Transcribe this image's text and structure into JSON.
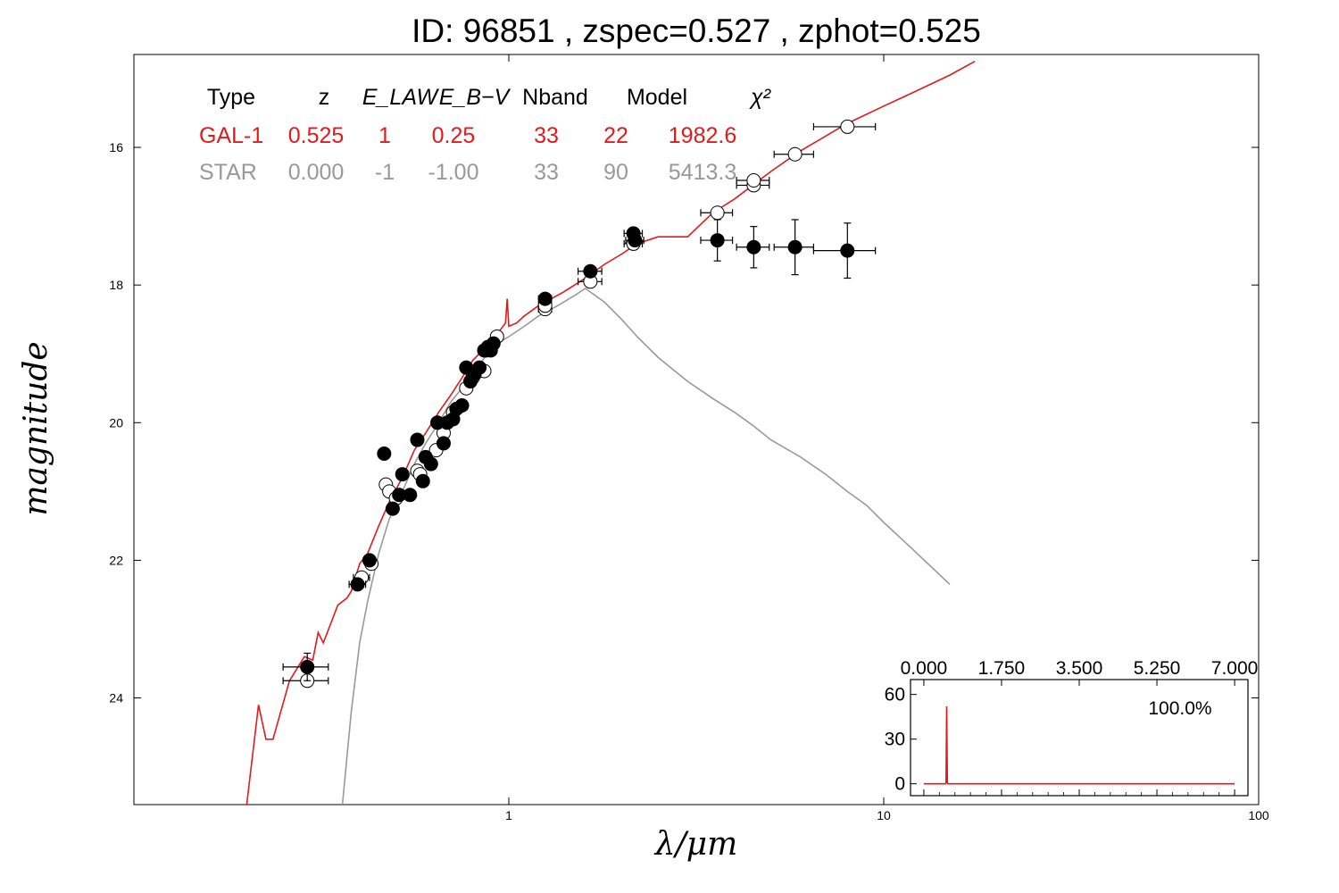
{
  "title": "ID:  96851 , zspec=0.527 , zphot=0.525",
  "colors": {
    "galaxy": "#e31a1c",
    "star": "#999999",
    "points": "#000000"
  },
  "chart_data": [
    {
      "type": "scatter",
      "xlabel": "λ/μm",
      "ylabel": "magnitude",
      "xscale": "log",
      "xlim": [
        0.1,
        100
      ],
      "ylim": [
        25.55,
        14.65
      ],
      "x_tick_labels": [
        {
          "value": 1,
          "label": "1"
        },
        {
          "value": 10,
          "label": "10"
        },
        {
          "value": 100,
          "label": "100"
        }
      ],
      "y_tick_labels": [
        {
          "value": 16,
          "label": "16"
        },
        {
          "value": 18,
          "label": "18"
        },
        {
          "value": 20,
          "label": "20"
        },
        {
          "value": 22,
          "label": "22"
        },
        {
          "value": 24,
          "label": "24"
        }
      ],
      "fit_table": {
        "headers": [
          "Type",
          "z",
          "E_LAW",
          "E_B−V",
          "Nband",
          "Model",
          "χ²"
        ],
        "rows": [
          {
            "color": "#e31a1c",
            "cells": [
              "GAL-1",
              "0.525",
              "1",
              "0.25",
              "33",
              "22",
              "1982.6"
            ]
          },
          {
            "color": "#999999",
            "cells": [
              "STAR",
              "0.000",
              "-1",
              "-1.00",
              "33",
              "90",
              "5413.3"
            ]
          }
        ]
      },
      "series": [
        {
          "name": "GAL-1",
          "kind": "line",
          "color": "#e31a1c",
          "points": [
            [
              0.2,
              25.55
            ],
            [
              0.215,
              24.1
            ],
            [
              0.225,
              24.6
            ],
            [
              0.235,
              24.6
            ],
            [
              0.26,
              23.75
            ],
            [
              0.285,
              23.4
            ],
            [
              0.3,
              23.45
            ],
            [
              0.31,
              23.05
            ],
            [
              0.32,
              23.2
            ],
            [
              0.35,
              22.65
            ],
            [
              0.37,
              22.55
            ],
            [
              0.38,
              22.45
            ],
            [
              0.4,
              22.05
            ],
            [
              0.42,
              21.9
            ],
            [
              0.45,
              21.5
            ],
            [
              0.48,
              21.15
            ],
            [
              0.52,
              20.8
            ],
            [
              0.56,
              20.4
            ],
            [
              0.6,
              20.15
            ],
            [
              0.65,
              19.85
            ],
            [
              0.7,
              19.6
            ],
            [
              0.75,
              19.35
            ],
            [
              0.8,
              19.1
            ],
            [
              0.85,
              18.95
            ],
            [
              0.9,
              18.85
            ],
            [
              0.95,
              18.65
            ],
            [
              0.98,
              18.55
            ],
            [
              0.99,
              18.2
            ],
            [
              1.0,
              18.6
            ],
            [
              1.05,
              18.55
            ],
            [
              1.1,
              18.45
            ],
            [
              1.2,
              18.3
            ],
            [
              1.4,
              18.1
            ],
            [
              1.6,
              17.9
            ],
            [
              1.8,
              17.7
            ],
            [
              2.0,
              17.55
            ],
            [
              2.2,
              17.4
            ],
            [
              2.5,
              17.3
            ],
            [
              3.0,
              17.3
            ],
            [
              3.5,
              16.95
            ],
            [
              4.0,
              16.75
            ],
            [
              5.0,
              16.35
            ],
            [
              6.0,
              16.05
            ],
            [
              8.0,
              15.65
            ],
            [
              10.0,
              15.4
            ],
            [
              12.0,
              15.2
            ],
            [
              15.0,
              14.95
            ],
            [
              17.5,
              14.75
            ]
          ]
        },
        {
          "name": "STAR",
          "kind": "line",
          "color": "#999999",
          "points": [
            [
              0.36,
              25.55
            ],
            [
              0.38,
              24.2
            ],
            [
              0.4,
              23.2
            ],
            [
              0.42,
              22.6
            ],
            [
              0.45,
              21.9
            ],
            [
              0.48,
              21.4
            ],
            [
              0.52,
              21.0
            ],
            [
              0.56,
              20.6
            ],
            [
              0.6,
              20.3
            ],
            [
              0.65,
              20.0
            ],
            [
              0.7,
              19.7
            ],
            [
              0.75,
              19.5
            ],
            [
              0.8,
              19.3
            ],
            [
              0.85,
              19.1
            ],
            [
              0.9,
              18.9
            ],
            [
              1.0,
              18.75
            ],
            [
              1.1,
              18.6
            ],
            [
              1.2,
              18.45
            ],
            [
              1.35,
              18.3
            ],
            [
              1.5,
              18.15
            ],
            [
              1.6,
              18.05
            ],
            [
              1.8,
              18.25
            ],
            [
              2.0,
              18.5
            ],
            [
              2.2,
              18.75
            ],
            [
              2.5,
              19.05
            ],
            [
              3.0,
              19.4
            ],
            [
              3.5,
              19.65
            ],
            [
              4.0,
              19.85
            ],
            [
              4.5,
              20.05
            ],
            [
              5.0,
              20.25
            ],
            [
              6.0,
              20.5
            ],
            [
              7.0,
              20.75
            ],
            [
              8.0,
              21.0
            ],
            [
              9.0,
              21.2
            ],
            [
              10.0,
              21.45
            ],
            [
              12.0,
              21.85
            ],
            [
              15.0,
              22.35
            ]
          ]
        },
        {
          "name": "observed",
          "kind": "points",
          "points": [
            {
              "x": 0.29,
              "y": 23.55,
              "xerr": 0.04,
              "yerr": 0.2
            },
            {
              "x": 0.395,
              "y": 22.35,
              "xerr": 0.02,
              "yerr": 0.05
            },
            {
              "x": 0.425,
              "y": 22.0,
              "xerr": 0.01,
              "yerr": 0.05
            },
            {
              "x": 0.465,
              "y": 20.45,
              "xerr": 0.01,
              "yerr": 0.05
            },
            {
              "x": 0.49,
              "y": 21.25,
              "xerr": 0.01,
              "yerr": 0.05
            },
            {
              "x": 0.51,
              "y": 21.05,
              "xerr": 0.01,
              "yerr": 0.05
            },
            {
              "x": 0.52,
              "y": 20.75,
              "xerr": 0.01,
              "yerr": 0.05
            },
            {
              "x": 0.545,
              "y": 21.05,
              "xerr": 0.01,
              "yerr": 0.05
            },
            {
              "x": 0.57,
              "y": 20.25,
              "xerr": 0.01,
              "yerr": 0.05
            },
            {
              "x": 0.59,
              "y": 20.85,
              "xerr": 0.01,
              "yerr": 0.05
            },
            {
              "x": 0.6,
              "y": 20.5,
              "xerr": 0.01,
              "yerr": 0.05
            },
            {
              "x": 0.62,
              "y": 20.6,
              "xerr": 0.01,
              "yerr": 0.05
            },
            {
              "x": 0.645,
              "y": 20.0,
              "xerr": 0.01,
              "yerr": 0.05
            },
            {
              "x": 0.67,
              "y": 20.3,
              "xerr": 0.01,
              "yerr": 0.05
            },
            {
              "x": 0.685,
              "y": 20.0,
              "xerr": 0.01,
              "yerr": 0.05
            },
            {
              "x": 0.71,
              "y": 19.95,
              "xerr": 0.01,
              "yerr": 0.05
            },
            {
              "x": 0.725,
              "y": 19.8,
              "xerr": 0.01,
              "yerr": 0.05
            },
            {
              "x": 0.75,
              "y": 19.75,
              "xerr": 0.01,
              "yerr": 0.05
            },
            {
              "x": 0.77,
              "y": 19.2,
              "xerr": 0.01,
              "yerr": 0.05
            },
            {
              "x": 0.79,
              "y": 19.4,
              "xerr": 0.01,
              "yerr": 0.05
            },
            {
              "x": 0.81,
              "y": 19.3,
              "xerr": 0.01,
              "yerr": 0.05
            },
            {
              "x": 0.835,
              "y": 19.2,
              "xerr": 0.01,
              "yerr": 0.05
            },
            {
              "x": 0.86,
              "y": 18.95,
              "xerr": 0.01,
              "yerr": 0.05
            },
            {
              "x": 0.88,
              "y": 18.9,
              "xerr": 0.01,
              "yerr": 0.05
            },
            {
              "x": 0.895,
              "y": 18.95,
              "xerr": 0.01,
              "yerr": 0.05
            },
            {
              "x": 0.91,
              "y": 18.85,
              "xerr": 0.01,
              "yerr": 0.05
            },
            {
              "x": 1.25,
              "y": 18.2,
              "xerr": 0.05,
              "yerr": 0.05
            },
            {
              "x": 1.65,
              "y": 17.8,
              "xerr": 0.12,
              "yerr": 0.05
            },
            {
              "x": 2.15,
              "y": 17.25,
              "xerr": 0.12,
              "yerr": 0.05
            },
            {
              "x": 2.17,
              "y": 17.35,
              "xerr": 0.12,
              "yerr": 0.05
            },
            {
              "x": 3.6,
              "y": 17.35,
              "xerr": 0.35,
              "yerr": 0.3
            },
            {
              "x": 4.5,
              "y": 17.45,
              "xerr": 0.45,
              "yerr": 0.3
            },
            {
              "x": 5.8,
              "y": 17.45,
              "xerr": 0.7,
              "yerr": 0.4
            },
            {
              "x": 8.0,
              "y": 17.5,
              "xerr": 1.5,
              "yerr": 0.4
            }
          ]
        },
        {
          "name": "model",
          "kind": "points",
          "points": [
            {
              "x": 0.29,
              "y": 23.75,
              "xerr": 0.04
            },
            {
              "x": 0.405,
              "y": 22.25,
              "xerr": 0.02
            },
            {
              "x": 0.43,
              "y": 22.05,
              "xerr": 0.01
            },
            {
              "x": 0.47,
              "y": 20.9,
              "xerr": 0.01
            },
            {
              "x": 0.48,
              "y": 21.0,
              "xerr": 0.01
            },
            {
              "x": 0.5,
              "y": 21.1,
              "xerr": 0.01
            },
            {
              "x": 0.57,
              "y": 20.7,
              "xerr": 0.01
            },
            {
              "x": 0.58,
              "y": 20.75,
              "xerr": 0.01
            },
            {
              "x": 0.64,
              "y": 20.4,
              "xerr": 0.01
            },
            {
              "x": 0.67,
              "y": 20.15,
              "xerr": 0.01
            },
            {
              "x": 0.71,
              "y": 19.85,
              "xerr": 0.01
            },
            {
              "x": 0.77,
              "y": 19.5,
              "xerr": 0.01
            },
            {
              "x": 0.8,
              "y": 19.35,
              "xerr": 0.01
            },
            {
              "x": 0.86,
              "y": 19.25,
              "xerr": 0.01
            },
            {
              "x": 0.87,
              "y": 18.95,
              "xerr": 0.01
            },
            {
              "x": 0.93,
              "y": 18.75,
              "xerr": 0.01
            },
            {
              "x": 1.25,
              "y": 18.35,
              "xerr": 0.05
            },
            {
              "x": 1.25,
              "y": 18.3,
              "xerr": 0.05
            },
            {
              "x": 1.65,
              "y": 17.95,
              "xerr": 0.12
            },
            {
              "x": 2.15,
              "y": 17.4,
              "xerr": 0.12
            },
            {
              "x": 3.6,
              "y": 16.95,
              "xerr": 0.35
            },
            {
              "x": 4.5,
              "y": 16.55,
              "xerr": 0.45
            },
            {
              "x": 4.5,
              "y": 16.48,
              "xerr": 0.45
            },
            {
              "x": 5.8,
              "y": 16.1,
              "xerr": 0.7
            },
            {
              "x": 8.0,
              "y": 15.7,
              "xerr": 1.5
            }
          ]
        }
      ]
    },
    {
      "type": "line",
      "inset": true,
      "xlim": [
        -0.3,
        7.3
      ],
      "ylim": [
        -8,
        70
      ],
      "x_ticks": [
        0.0,
        1.75,
        3.5,
        5.25,
        7.0
      ],
      "x_tick_labels": [
        "0.000",
        "1.750",
        "3.500",
        "5.250",
        "7.000"
      ],
      "y_ticks": [
        0,
        30,
        60
      ],
      "y_tick_labels": [
        "0",
        "30",
        "60"
      ],
      "annotation": "100.0%",
      "color": "#e31a1c",
      "points": [
        [
          0.0,
          0
        ],
        [
          0.49,
          0
        ],
        [
          0.5,
          0.5
        ],
        [
          0.515,
          52
        ],
        [
          0.53,
          0.5
        ],
        [
          0.54,
          0
        ],
        [
          7.0,
          0
        ]
      ]
    }
  ]
}
